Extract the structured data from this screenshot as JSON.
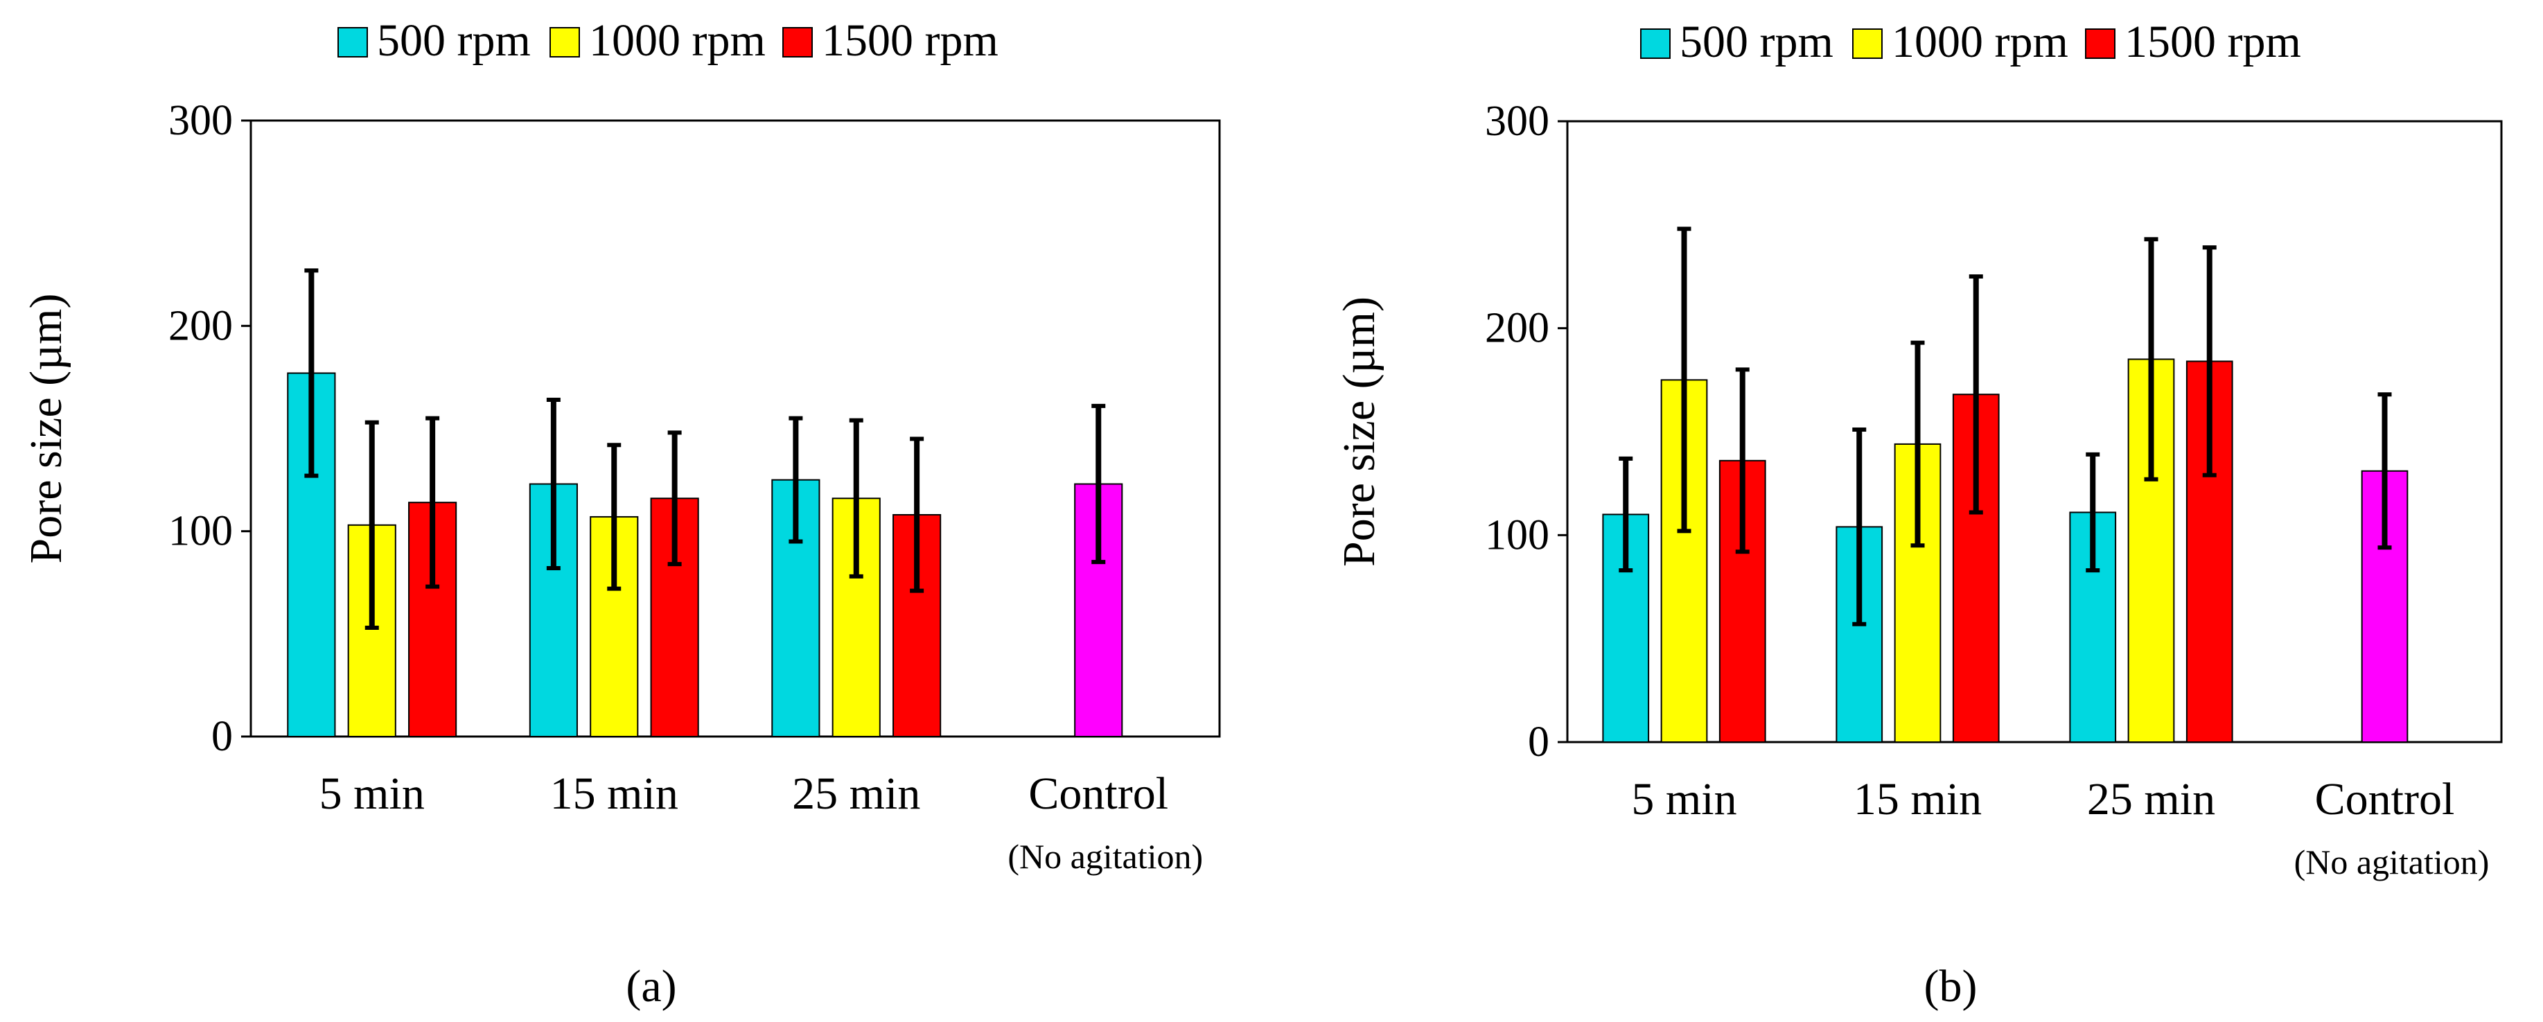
{
  "chart_data": [
    {
      "type": "bar",
      "panel_label": "(a)",
      "categories": [
        "5 min",
        "15 min",
        "25 min",
        "Control"
      ],
      "category_sublabels": [
        "",
        "",
        "",
        "(No agitation)"
      ],
      "ylabel": "Pore size (µm)",
      "ylim": [
        0,
        300
      ],
      "yticks": [
        0,
        100,
        200,
        300
      ],
      "legend": "top",
      "series": [
        {
          "name": "500 rpm",
          "color": "#00D8E0",
          "values": [
            177,
            123,
            125,
            null
          ],
          "err": [
            50,
            41,
            30,
            null
          ]
        },
        {
          "name": "1000 rpm",
          "color": "#FFFF00",
          "values": [
            103,
            107,
            116,
            null
          ],
          "err": [
            50,
            35,
            38,
            null
          ]
        },
        {
          "name": "1500 rpm",
          "color": "#FF0000",
          "values": [
            114,
            116,
            108,
            null
          ],
          "err": [
            41,
            32,
            37,
            null
          ]
        }
      ],
      "control": {
        "value": 123,
        "err": 38,
        "color": "#FF00FF"
      }
    },
    {
      "type": "bar",
      "panel_label": "(b)",
      "categories": [
        "5 min",
        "15 min",
        "25 min",
        "Control"
      ],
      "category_sublabels": [
        "",
        "",
        "",
        "(No agitation)"
      ],
      "ylabel": "Pore size (µm)",
      "ylim": [
        0,
        300
      ],
      "yticks": [
        0,
        100,
        200,
        300
      ],
      "legend": "top",
      "series": [
        {
          "name": "500 rpm",
          "color": "#00D8E0",
          "values": [
            110,
            104,
            111,
            null
          ],
          "err": [
            27,
            47,
            28,
            null
          ]
        },
        {
          "name": "1000 rpm",
          "color": "#FFFF00",
          "values": [
            175,
            144,
            185,
            null
          ],
          "err": [
            73,
            49,
            58,
            null
          ]
        },
        {
          "name": "1500 rpm",
          "color": "#FF0000",
          "values": [
            136,
            168,
            184,
            null
          ],
          "err": [
            44,
            57,
            55,
            null
          ]
        }
      ],
      "control": {
        "value": 131,
        "err": 37,
        "color": "#FF00FF"
      }
    }
  ]
}
